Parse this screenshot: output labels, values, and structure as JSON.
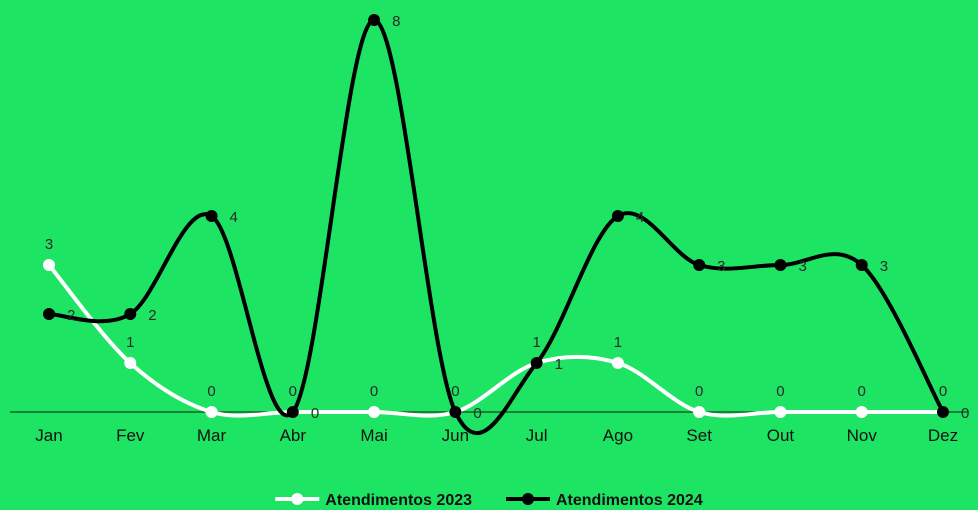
{
  "chart_data": {
    "type": "line",
    "categories": [
      "Jan",
      "Fev",
      "Mar",
      "Abr",
      "Mai",
      "Jun",
      "Jul",
      "Ago",
      "Set",
      "Out",
      "Nov",
      "Dez"
    ],
    "series": [
      {
        "name": "Atendimentos 2023",
        "values": [
          3,
          1,
          0,
          0,
          0,
          0,
          1,
          1,
          0,
          0,
          0,
          0
        ],
        "color": "#ffffff"
      },
      {
        "name": "Atendimentos 2024",
        "values": [
          2,
          2,
          4,
          0,
          8,
          0,
          1,
          4,
          3,
          3,
          3,
          0
        ],
        "color": "#000000"
      }
    ],
    "ylim": [
      0,
      8
    ],
    "smooth": true,
    "grid": false,
    "legend_position": "bottom-center",
    "background": "#1ee463"
  }
}
